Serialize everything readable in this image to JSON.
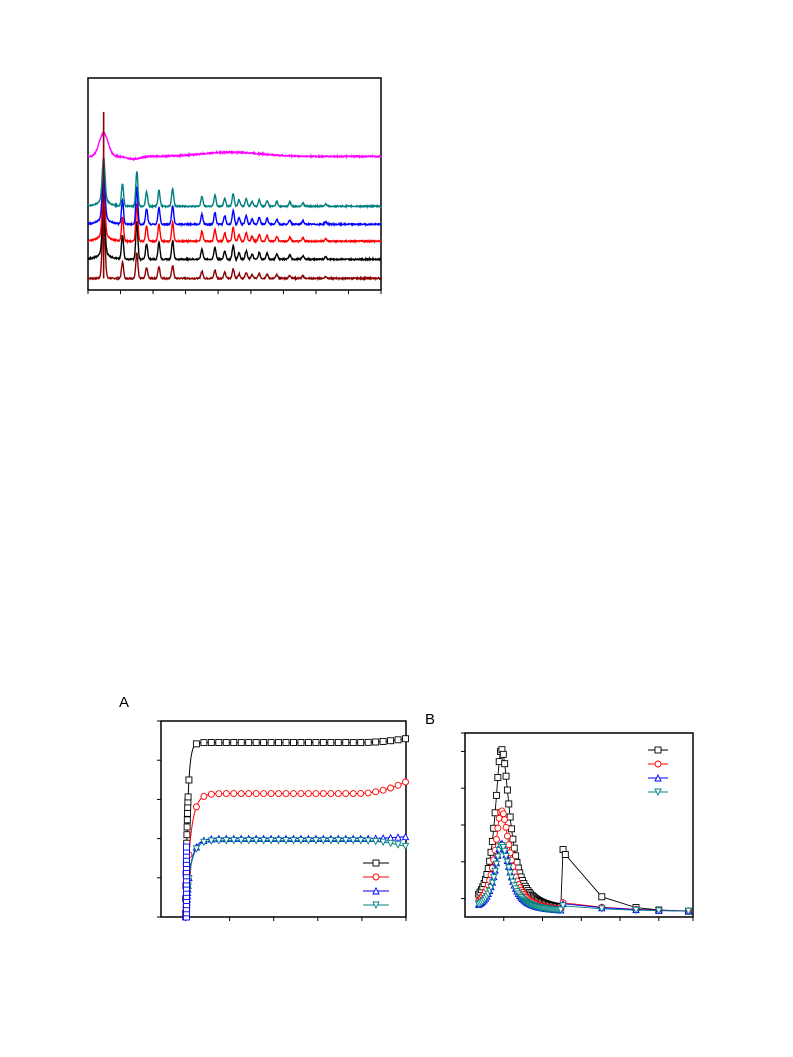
{
  "chart_data": [
    {
      "type": "line",
      "panel": "",
      "x": [
        0,
        1,
        2,
        3,
        4,
        5,
        6,
        7,
        8,
        9,
        10,
        11,
        12,
        13,
        14,
        15,
        16,
        17,
        18,
        19,
        20,
        21,
        22,
        23,
        24,
        25,
        26,
        27,
        28,
        29,
        30,
        31,
        32,
        33,
        34,
        35,
        36,
        37,
        38,
        39,
        40,
        41,
        42,
        43,
        44,
        45
      ],
      "xlim": [
        0,
        45
      ],
      "ylim": [
        0,
        1
      ],
      "colors": [
        "#8b0000",
        "#000000",
        "#ff0000",
        "#0000ff",
        "#008080",
        "#ff00ff"
      ],
      "baselines": [
        0.055,
        0.145,
        0.23,
        0.31,
        0.395,
        0.63
      ],
      "peak_positions": [
        2.4,
        5.3,
        7.5,
        9.0,
        10.9,
        13.0,
        17.5,
        19.5,
        21.0,
        22.3,
        23.2,
        24.3,
        25.2,
        26.3,
        27.5,
        29.0,
        31.0,
        33.0,
        36.5
      ],
      "peak_heights": [
        0.55,
        0.14,
        0.22,
        0.09,
        0.1,
        0.11,
        0.06,
        0.07,
        0.05,
        0.08,
        0.04,
        0.05,
        0.03,
        0.04,
        0.035,
        0.03,
        0.025,
        0.02,
        0.015
      ],
      "top_curve_peak": 2.4
    },
    {
      "type": "line",
      "panel": "A",
      "xlim": [
        0,
        50
      ],
      "ylim": [
        0,
        50
      ],
      "series": [
        {
          "color": "#000000",
          "marker": "square",
          "plateau": 44.5,
          "end": 45.5
        },
        {
          "color": "#ff0000",
          "marker": "circle",
          "plateau": 31.5,
          "end": 34.5
        },
        {
          "color": "#0000ff",
          "marker": "triangle-up",
          "plateau": 20.0,
          "end": 20.5
        },
        {
          "color": "#008080",
          "marker": "triangle-down",
          "plateau": 19.5,
          "end": 18.0
        }
      ]
    },
    {
      "type": "line",
      "panel": "B",
      "xlim": [
        0,
        10
      ],
      "ylim": [
        0,
        9
      ],
      "series": [
        {
          "color": "#000000",
          "marker": "square",
          "peak": 8.2,
          "second_peak": 3.3
        },
        {
          "color": "#ff0000",
          "marker": "circle",
          "peak": 5.2,
          "second_peak": 0.7
        },
        {
          "color": "#0000ff",
          "marker": "triangle-up",
          "peak": 3.6,
          "second_peak": 0.65
        },
        {
          "color": "#008080",
          "marker": "triangle-down",
          "peak": 3.5,
          "second_peak": 0.55
        }
      ]
    }
  ],
  "labels": {
    "panel_a": "A",
    "panel_b": "B"
  }
}
